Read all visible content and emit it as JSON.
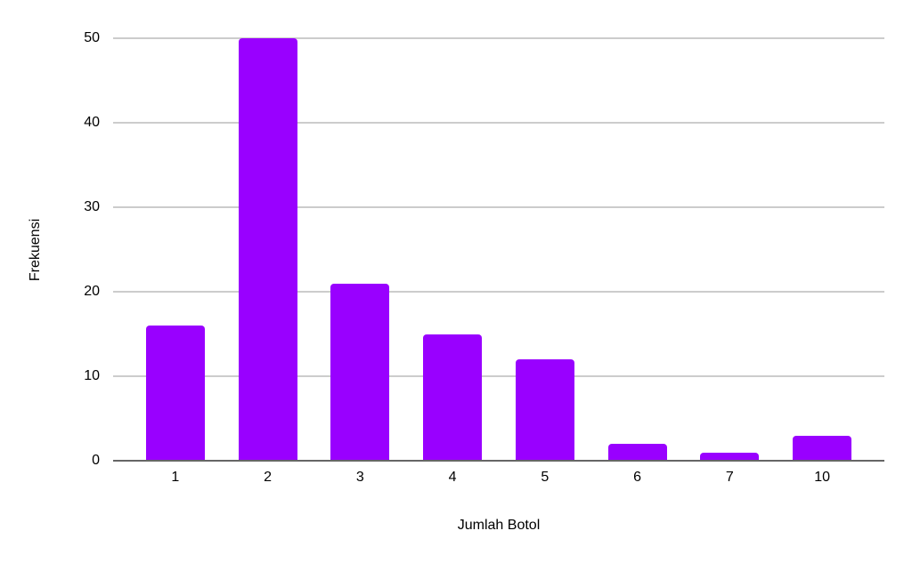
{
  "chart_data": {
    "type": "bar",
    "title": "",
    "xlabel": "Jumlah Botol",
    "ylabel": "Frekuensi",
    "categories": [
      "1",
      "2",
      "3",
      "4",
      "5",
      "6",
      "7",
      "10"
    ],
    "values": [
      16,
      50,
      21,
      15,
      12,
      2,
      1,
      3
    ],
    "ylim": [
      0,
      50
    ],
    "yticks": [
      0,
      10,
      20,
      30,
      40,
      50
    ],
    "grid": true,
    "legend": "none",
    "colors": {
      "bar": "#9900ff",
      "gridline": "#cccccc",
      "axis_line": "#666666",
      "text": "#000000",
      "background": "#ffffff"
    }
  }
}
